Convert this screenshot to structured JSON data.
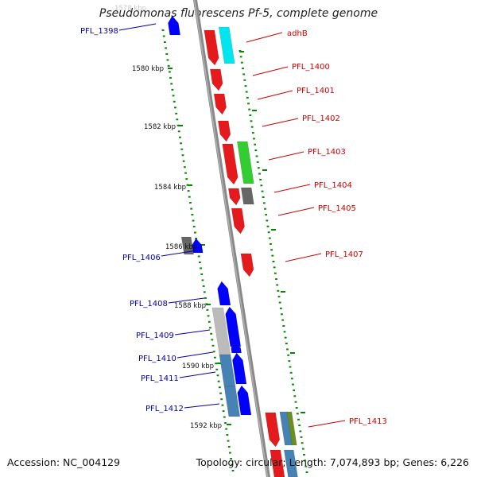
{
  "title": "Pseudomonas fluorescens Pf-5, complete genome",
  "footer": {
    "accession": "Accession: NC_004129",
    "summary": "Topology: circular; Length: 7,074,893 bp; Genes: 6,226"
  },
  "colors": {
    "forward_gene": "#e41a1c",
    "reverse_gene": "#0000ff",
    "cyan_feature": "#00e5ee",
    "green_feature": "#33cc33",
    "gray_feature": "#666666",
    "steelblue_feature": "#4682b4",
    "lightgray_feature": "#bbbbbb",
    "olive_feature": "#6b8e23",
    "backbone": "#888888",
    "tick": "#008800",
    "label_forward": "#cc0000",
    "label_reverse": "#0000aa"
  },
  "scale_labels": [
    "1578 kbp",
    "1580 kbp",
    "1582 kbp",
    "1584 kbp",
    "1586 kbp",
    "1588 kbp",
    "1590 kbp",
    "1592 kbp"
  ],
  "gene_labels": [
    {
      "text": "PFL_1398",
      "strand": "reverse"
    },
    {
      "text": "adhB",
      "strand": "forward"
    },
    {
      "text": "PFL_1400",
      "strand": "forward"
    },
    {
      "text": "PFL_1401",
      "strand": "forward"
    },
    {
      "text": "PFL_1402",
      "strand": "forward"
    },
    {
      "text": "PFL_1403",
      "strand": "forward"
    },
    {
      "text": "PFL_1404",
      "strand": "forward"
    },
    {
      "text": "PFL_1405",
      "strand": "forward"
    },
    {
      "text": "PFL_1406",
      "strand": "reverse"
    },
    {
      "text": "PFL_1407",
      "strand": "forward"
    },
    {
      "text": "PFL_1408",
      "strand": "reverse"
    },
    {
      "text": "PFL_1409",
      "strand": "reverse"
    },
    {
      "text": "PFL_1410",
      "strand": "reverse"
    },
    {
      "text": "PFL_1411",
      "strand": "reverse"
    },
    {
      "text": "PFL_1412",
      "strand": "reverse"
    },
    {
      "text": "PFL_1413",
      "strand": "forward"
    }
  ]
}
